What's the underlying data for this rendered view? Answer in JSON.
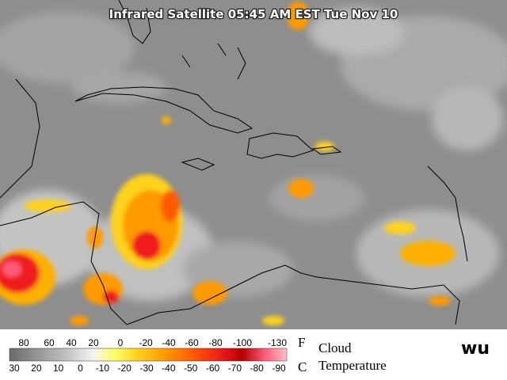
{
  "header": {
    "title": "Infrared Satellite 05:45 AM EST Tue Nov 10"
  },
  "legend": {
    "fahrenheit_labels": [
      80,
      60,
      40,
      20,
      0,
      -20,
      -40,
      -60,
      -80,
      -100,
      -130
    ],
    "fahrenheit_unit": "F",
    "celsius_labels": [
      30,
      20,
      10,
      0,
      -10,
      -20,
      -30,
      -40,
      -50,
      -60,
      -70,
      -80,
      -90
    ],
    "celsius_unit": "C",
    "title_line1": "Cloud",
    "title_line2": "Temperature"
  },
  "logo": {
    "text": "wu"
  }
}
